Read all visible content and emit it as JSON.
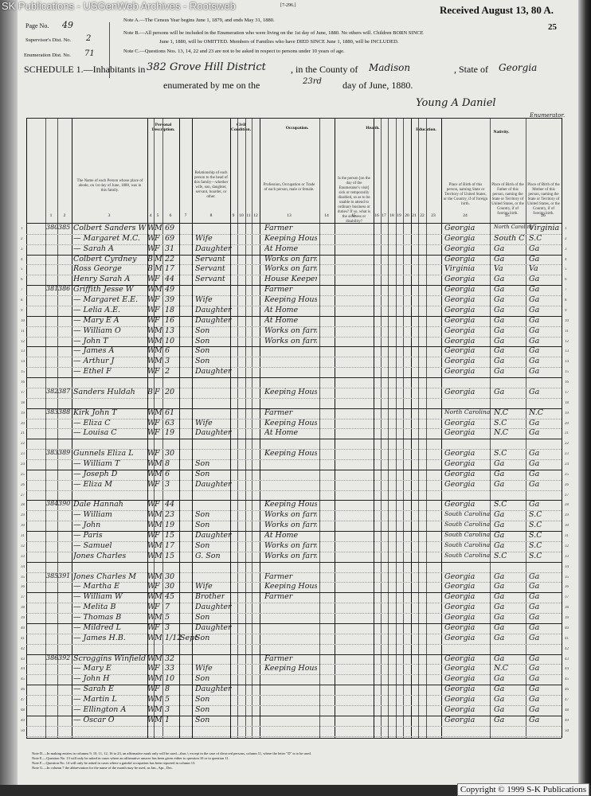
{
  "watermark": "SK Publications - USGenWeb Archives - Rootsweb",
  "form_id": "[7-296.]",
  "received_stamp": "Received August 13, 80 A.",
  "sheet_number": "25",
  "header": {
    "page_label": "Page No.",
    "page_value": "49",
    "supervisor_label": "Supervisor's Dist. No.",
    "supervisor_value": "2",
    "enumeration_label": "Enumeration Dist. No.",
    "enumeration_value": "71",
    "notes": [
      "Note A.—The Census Year begins June 1, 1879, and ends May 31, 1880.",
      "Note B.—All persons will be included in the Enumeration who were living on the 1st day of June, 1880. No others will. Children BORN SINCE",
      "June 1, 1880, will be OMITTED. Members of Families who have DIED SINCE June 1, 1880, will be INCLUDED.",
      "Note C.—Questions Nos. 13, 14, 22 and 23 are not to be asked in respect to persons under 10 years of age."
    ],
    "schedule_label": "SCHEDULE 1.—Inhabitants in",
    "district_value": "382 Grove Hill District",
    "county_label": ", in the County of",
    "county_value": "Madison",
    "state_label": ", State of",
    "state_value": "Georgia",
    "enumerated_label": "enumerated by me on the",
    "day_value": "23rd",
    "date_suffix": "day of June, 1880.",
    "enumerator_signature": "Young A Daniel",
    "enumerator_label": "Enumerator."
  },
  "column_groups": {
    "personal": "Personal Description.",
    "civil": "Civil Condition.",
    "occupation": "Occupation.",
    "health": "Health.",
    "education": "Education.",
    "nativity": "Nativity."
  },
  "column_headings": {
    "name": "The Name of each Person whose place of abode, on 1st day of June, 1880, was in this family.",
    "relation": "Relationship of each person to the head of this family—whether wife, son, daughter, servant, boarder, or other.",
    "occupation": "Profession, Occupation or Trade of each person, male or female.",
    "health": "Is the person [on the day of the Enumerator's visit] sick or temporarily disabled, so as to be unable to attend to ordinary business or duties? If so, what is the sickness or disability?",
    "birth": "Place of Birth of this person, naming State or Territory of United States, or the Country, if of foreign birth.",
    "father": "Place of Birth of the Father of this person, naming the State or Territory of United States, or the Country, if of foreign birth.",
    "mother": "Place of Birth of the Mother of this person, naming the State or Territory of United States, or the Country, if of foreign birth."
  },
  "column_numbers": [
    "1",
    "2",
    "3",
    "4",
    "5",
    "6",
    "7",
    "8",
    "9",
    "10",
    "11",
    "12",
    "13",
    "14",
    "15",
    "16",
    "17",
    "18",
    "19",
    "20",
    "21",
    "22",
    "23",
    "24",
    "25",
    "26"
  ],
  "rows": [
    {
      "line": "1",
      "dwelling": "380",
      "family": "385",
      "name": "Colbert Sanders W",
      "color": "W",
      "sex": "M",
      "age": "69",
      "month": "",
      "relation": "",
      "occupation": "Farmer",
      "birth": "Georgia",
      "father": "North Carolina",
      "mother": "Virginia"
    },
    {
      "line": "2",
      "dwelling": "",
      "family": "",
      "name": "— Margaret M.C.",
      "color": "W",
      "sex": "F",
      "age": "69",
      "month": "",
      "relation": "Wife",
      "occupation": "Keeping House",
      "birth": "Georgia",
      "father": "South C",
      "mother": "S.C"
    },
    {
      "line": "3",
      "dwelling": "",
      "family": "",
      "name": "— Sarah A",
      "color": "W",
      "sex": "F",
      "age": "31",
      "month": "",
      "relation": "Daughter",
      "occupation": "At Home",
      "birth": "Georgia",
      "father": "Ga",
      "mother": "Ga"
    },
    {
      "line": "4",
      "dwelling": "",
      "family": "",
      "name": "Colbert Cyrdney",
      "color": "B",
      "sex": "M",
      "age": "22",
      "month": "",
      "relation": "Servant",
      "occupation": "Works on farm",
      "birth": "Georgia",
      "father": "Ga",
      "mother": "Ga"
    },
    {
      "line": "5",
      "dwelling": "",
      "family": "",
      "name": "Ross George",
      "color": "B",
      "sex": "M",
      "age": "17",
      "month": "",
      "relation": "Servant",
      "occupation": "Works on farm",
      "birth": "Virginia",
      "father": "Va",
      "mother": "Va"
    },
    {
      "line": "6",
      "dwelling": "",
      "family": "",
      "name": "Henry Sarah A",
      "color": "W",
      "sex": "F",
      "age": "44",
      "month": "",
      "relation": "Servant",
      "occupation": "House Keeper",
      "birth": "Georgia",
      "father": "Ga",
      "mother": "Ga"
    },
    {
      "line": "7",
      "dwelling": "381",
      "family": "386",
      "name": "Griffith Jesse W",
      "color": "W",
      "sex": "M",
      "age": "49",
      "month": "",
      "relation": "",
      "occupation": "Farmer",
      "birth": "Georgia",
      "father": "Ga",
      "mother": "Ga"
    },
    {
      "line": "8",
      "dwelling": "",
      "family": "",
      "name": "— Margaret E.E.",
      "color": "W",
      "sex": "F",
      "age": "39",
      "month": "",
      "relation": "Wife",
      "occupation": "Keeping House",
      "birth": "Georgia",
      "father": "Ga",
      "mother": "Ga"
    },
    {
      "line": "9",
      "dwelling": "",
      "family": "",
      "name": "— Lelia A.E.",
      "color": "W",
      "sex": "F",
      "age": "18",
      "month": "",
      "relation": "Daughter",
      "occupation": "At Home",
      "birth": "Georgia",
      "father": "Ga",
      "mother": "Ga"
    },
    {
      "line": "10",
      "dwelling": "",
      "family": "",
      "name": "— Mary E A",
      "color": "W",
      "sex": "F",
      "age": "16",
      "month": "",
      "relation": "Daughter",
      "occupation": "At Home",
      "birth": "Georgia",
      "father": "Ga",
      "mother": "Ga"
    },
    {
      "line": "11",
      "dwelling": "",
      "family": "",
      "name": "— William O",
      "color": "W",
      "sex": "M",
      "age": "13",
      "month": "",
      "relation": "Son",
      "occupation": "Works on farm",
      "birth": "Georgia",
      "father": "Ga",
      "mother": "Ga"
    },
    {
      "line": "12",
      "dwelling": "",
      "family": "",
      "name": "— John T",
      "color": "W",
      "sex": "M",
      "age": "10",
      "month": "",
      "relation": "Son",
      "occupation": "Works on farm",
      "birth": "Georgia",
      "father": "Ga",
      "mother": "Ga"
    },
    {
      "line": "13",
      "dwelling": "",
      "family": "",
      "name": "— James A",
      "color": "W",
      "sex": "M",
      "age": "6",
      "month": "",
      "relation": "Son",
      "occupation": "",
      "birth": "Georgia",
      "father": "Ga",
      "mother": "Ga"
    },
    {
      "line": "14",
      "dwelling": "",
      "family": "",
      "name": "— Arthur J",
      "color": "W",
      "sex": "M",
      "age": "3",
      "month": "",
      "relation": "Son",
      "occupation": "",
      "birth": "Georgia",
      "father": "Ga",
      "mother": "Ga"
    },
    {
      "line": "15",
      "dwelling": "",
      "family": "",
      "name": "— Ethel F",
      "color": "W",
      "sex": "F",
      "age": "2",
      "month": "",
      "relation": "Daughter",
      "occupation": "",
      "birth": "Georgia",
      "father": "Ga",
      "mother": "Ga"
    },
    {
      "line": "16",
      "dwelling": "",
      "family": "",
      "name": "",
      "color": "",
      "sex": "",
      "age": "",
      "month": "",
      "relation": "",
      "occupation": "",
      "birth": "",
      "father": "",
      "mother": ""
    },
    {
      "line": "17",
      "dwelling": "382",
      "family": "387",
      "name": "Sanders Huldah",
      "color": "B",
      "sex": "F",
      "age": "20",
      "month": "",
      "relation": "",
      "occupation": "Keeping House",
      "birth": "Georgia",
      "father": "Ga",
      "mother": "Ga"
    },
    {
      "line": "18",
      "dwelling": "",
      "family": "",
      "name": "",
      "color": "",
      "sex": "",
      "age": "",
      "month": "",
      "relation": "",
      "occupation": "",
      "birth": "",
      "father": "",
      "mother": ""
    },
    {
      "line": "19",
      "dwelling": "383",
      "family": "388",
      "name": "Kirk John T",
      "color": "W",
      "sex": "M",
      "age": "61",
      "month": "",
      "relation": "",
      "occupation": "Farmer",
      "birth": "North Carolina",
      "father": "N.C",
      "mother": "N.C"
    },
    {
      "line": "20",
      "dwelling": "",
      "family": "",
      "name": "— Eliza C",
      "color": "W",
      "sex": "F",
      "age": "63",
      "month": "",
      "relation": "Wife",
      "occupation": "Keeping House",
      "birth": "Georgia",
      "father": "S.C",
      "mother": "Ga"
    },
    {
      "line": "21",
      "dwelling": "",
      "family": "",
      "name": "— Louisa C",
      "color": "W",
      "sex": "F",
      "age": "19",
      "month": "",
      "relation": "Daughter",
      "occupation": "At Home",
      "birth": "Georgia",
      "father": "N.C",
      "mother": "Ga"
    },
    {
      "line": "22",
      "dwelling": "",
      "family": "",
      "name": "",
      "color": "",
      "sex": "",
      "age": "",
      "month": "",
      "relation": "",
      "occupation": "",
      "birth": "",
      "father": "",
      "mother": ""
    },
    {
      "line": "23",
      "dwelling": "383",
      "family": "389",
      "name": "Gunnels Eliza L",
      "color": "W",
      "sex": "F",
      "age": "30",
      "month": "",
      "relation": "",
      "occupation": "Keeping House",
      "birth": "Georgia",
      "father": "S.C",
      "mother": "Ga"
    },
    {
      "line": "24",
      "dwelling": "",
      "family": "",
      "name": "— William T",
      "color": "W",
      "sex": "M",
      "age": "8",
      "month": "",
      "relation": "Son",
      "occupation": "",
      "birth": "Georgia",
      "father": "Ga",
      "mother": "Ga"
    },
    {
      "line": "25",
      "dwelling": "",
      "family": "",
      "name": "— Joseph D",
      "color": "W",
      "sex": "M",
      "age": "6",
      "month": "",
      "relation": "Son",
      "occupation": "",
      "birth": "Georgia",
      "father": "Ga",
      "mother": "Ga"
    },
    {
      "line": "26",
      "dwelling": "",
      "family": "",
      "name": "— Eliza M",
      "color": "W",
      "sex": "F",
      "age": "3",
      "month": "",
      "relation": "Daughter",
      "occupation": "",
      "birth": "Georgia",
      "father": "Ga",
      "mother": "Ga"
    },
    {
      "line": "27",
      "dwelling": "",
      "family": "",
      "name": "",
      "color": "",
      "sex": "",
      "age": "",
      "month": "",
      "relation": "",
      "occupation": "",
      "birth": "",
      "father": "",
      "mother": ""
    },
    {
      "line": "28",
      "dwelling": "384",
      "family": "390",
      "name": "Dale Hannah",
      "color": "W",
      "sex": "F",
      "age": "44",
      "month": "",
      "relation": "",
      "occupation": "Keeping House",
      "birth": "Georgia",
      "father": "S.C",
      "mother": "Ga"
    },
    {
      "line": "29",
      "dwelling": "",
      "family": "",
      "name": "— William",
      "color": "W",
      "sex": "M",
      "age": "23",
      "month": "",
      "relation": "Son",
      "occupation": "Works on farm",
      "birth": "South Carolina",
      "father": "Ga",
      "mother": "S.C"
    },
    {
      "line": "30",
      "dwelling": "",
      "family": "",
      "name": "— John",
      "color": "W",
      "sex": "M",
      "age": "19",
      "month": "",
      "relation": "Son",
      "occupation": "Works on farm",
      "birth": "South Carolina",
      "father": "Ga",
      "mother": "S.C"
    },
    {
      "line": "31",
      "dwelling": "",
      "family": "",
      "name": "— Paris",
      "color": "W",
      "sex": "F",
      "age": "15",
      "month": "",
      "relation": "Daughter",
      "occupation": "At Home",
      "birth": "South Carolina",
      "father": "Ga",
      "mother": "S.C"
    },
    {
      "line": "32",
      "dwelling": "",
      "family": "",
      "name": "— Samuel",
      "color": "W",
      "sex": "M",
      "age": "17",
      "month": "",
      "relation": "Son",
      "occupation": "Works on farm",
      "birth": "South Carolina",
      "father": "Ga",
      "mother": "S.C"
    },
    {
      "line": "33",
      "dwelling": "",
      "family": "",
      "name": "Jones Charles",
      "color": "W",
      "sex": "M",
      "age": "15",
      "month": "",
      "relation": "G. Son",
      "occupation": "Works on farm",
      "birth": "South Carolina",
      "father": "S.C",
      "mother": "S.C"
    },
    {
      "line": "34",
      "dwelling": "",
      "family": "",
      "name": "",
      "color": "",
      "sex": "",
      "age": "",
      "month": "",
      "relation": "",
      "occupation": "",
      "birth": "",
      "father": "",
      "mother": ""
    },
    {
      "line": "35",
      "dwelling": "385",
      "family": "391",
      "name": "Jones Charles M",
      "color": "W",
      "sex": "M",
      "age": "30",
      "month": "",
      "relation": "",
      "occupation": "Farmer",
      "birth": "Georgia",
      "father": "Ga",
      "mother": "Ga"
    },
    {
      "line": "36",
      "dwelling": "",
      "family": "",
      "name": "— Martha E",
      "color": "W",
      "sex": "F",
      "age": "30",
      "month": "",
      "relation": "Wife",
      "occupation": "Keeping House",
      "birth": "Georgia",
      "father": "Ga",
      "mother": "Ga"
    },
    {
      "line": "37",
      "dwelling": "",
      "family": "",
      "name": "— William W",
      "color": "W",
      "sex": "M",
      "age": "45",
      "month": "",
      "relation": "Brother",
      "occupation": "Farmer",
      "birth": "Georgia",
      "father": "Ga",
      "mother": "Ga"
    },
    {
      "line": "38",
      "dwelling": "",
      "family": "",
      "name": "— Melita B",
      "color": "W",
      "sex": "F",
      "age": "7",
      "month": "",
      "relation": "Daughter",
      "occupation": "",
      "birth": "Georgia",
      "father": "Ga",
      "mother": "Ga"
    },
    {
      "line": "39",
      "dwelling": "",
      "family": "",
      "name": "— Thomas B",
      "color": "W",
      "sex": "M",
      "age": "5",
      "month": "",
      "relation": "Son",
      "occupation": "",
      "birth": "Georgia",
      "father": "Ga",
      "mother": "Ga"
    },
    {
      "line": "40",
      "dwelling": "",
      "family": "",
      "name": "— Mildred L",
      "color": "W",
      "sex": "F",
      "age": "3",
      "month": "",
      "relation": "Daughter",
      "occupation": "",
      "birth": "Georgia",
      "father": "Ga",
      "mother": "Ga"
    },
    {
      "line": "41",
      "dwelling": "",
      "family": "",
      "name": "— James H.B.",
      "color": "W",
      "sex": "M",
      "age": "1/12",
      "month": "Sept",
      "relation": "Son",
      "occupation": "",
      "birth": "Georgia",
      "father": "Ga",
      "mother": "Ga"
    },
    {
      "line": "42",
      "dwelling": "",
      "family": "",
      "name": "",
      "color": "",
      "sex": "",
      "age": "",
      "month": "",
      "relation": "",
      "occupation": "",
      "birth": "",
      "father": "",
      "mother": ""
    },
    {
      "line": "43",
      "dwelling": "386",
      "family": "392",
      "name": "Scroggins Winfield S",
      "color": "W",
      "sex": "M",
      "age": "32",
      "month": "",
      "relation": "",
      "occupation": "Farmer",
      "birth": "Georgia",
      "father": "Ga",
      "mother": "Ga"
    },
    {
      "line": "44",
      "dwelling": "",
      "family": "",
      "name": "— Mary E",
      "color": "W",
      "sex": "F",
      "age": "33",
      "month": "",
      "relation": "Wife",
      "occupation": "Keeping House",
      "birth": "Georgia",
      "father": "N.C",
      "mother": "Ga"
    },
    {
      "line": "45",
      "dwelling": "",
      "family": "",
      "name": "— John H",
      "color": "W",
      "sex": "M",
      "age": "10",
      "month": "",
      "relation": "Son",
      "occupation": "",
      "birth": "Georgia",
      "father": "Ga",
      "mother": "Ga"
    },
    {
      "line": "46",
      "dwelling": "",
      "family": "",
      "name": "— Sarah E",
      "color": "W",
      "sex": "F",
      "age": "8",
      "month": "",
      "relation": "Daughter",
      "occupation": "",
      "birth": "Georgia",
      "father": "Ga",
      "mother": "Ga"
    },
    {
      "line": "47",
      "dwelling": "",
      "family": "",
      "name": "— Martin L",
      "color": "W",
      "sex": "M",
      "age": "5",
      "month": "",
      "relation": "Son",
      "occupation": "",
      "birth": "Georgia",
      "father": "Ga",
      "mother": "Ga"
    },
    {
      "line": "48",
      "dwelling": "",
      "family": "",
      "name": "— Ellington A",
      "color": "W",
      "sex": "M",
      "age": "3",
      "month": "",
      "relation": "Son",
      "occupation": "",
      "birth": "Georgia",
      "father": "Ga",
      "mother": "Ga"
    },
    {
      "line": "49",
      "dwelling": "",
      "family": "",
      "name": "— Oscar O",
      "color": "W",
      "sex": "M",
      "age": "1",
      "month": "",
      "relation": "Son",
      "occupation": "",
      "birth": "Georgia",
      "father": "Ga",
      "mother": "Ga"
    },
    {
      "line": "50",
      "dwelling": "",
      "family": "",
      "name": "",
      "color": "",
      "sex": "",
      "age": "",
      "month": "",
      "relation": "",
      "occupation": "",
      "birth": "",
      "father": "",
      "mother": ""
    }
  ],
  "footer_notes": [
    "Note D.—In making entries in columns 9, 10, 11, 12, 16 to 23, an affirmative mark only will be used—thus /; except in the case of divorced persons, column 11, where the letter \"D\" is to be used.",
    "Note E.—Question No. 13 will only be asked in cases where an affirmative answer has been given either to question 10 or to question 11.",
    "Note F.—Question No. 14 will only be asked in cases where a gainful occupation has been reported in column 13.",
    "Note G.—In column 7 the abbreviation for the name of the month may be used, as Jan., Apr., Dec."
  ],
  "copyright": "Copyright © 1999 S-K Publications"
}
